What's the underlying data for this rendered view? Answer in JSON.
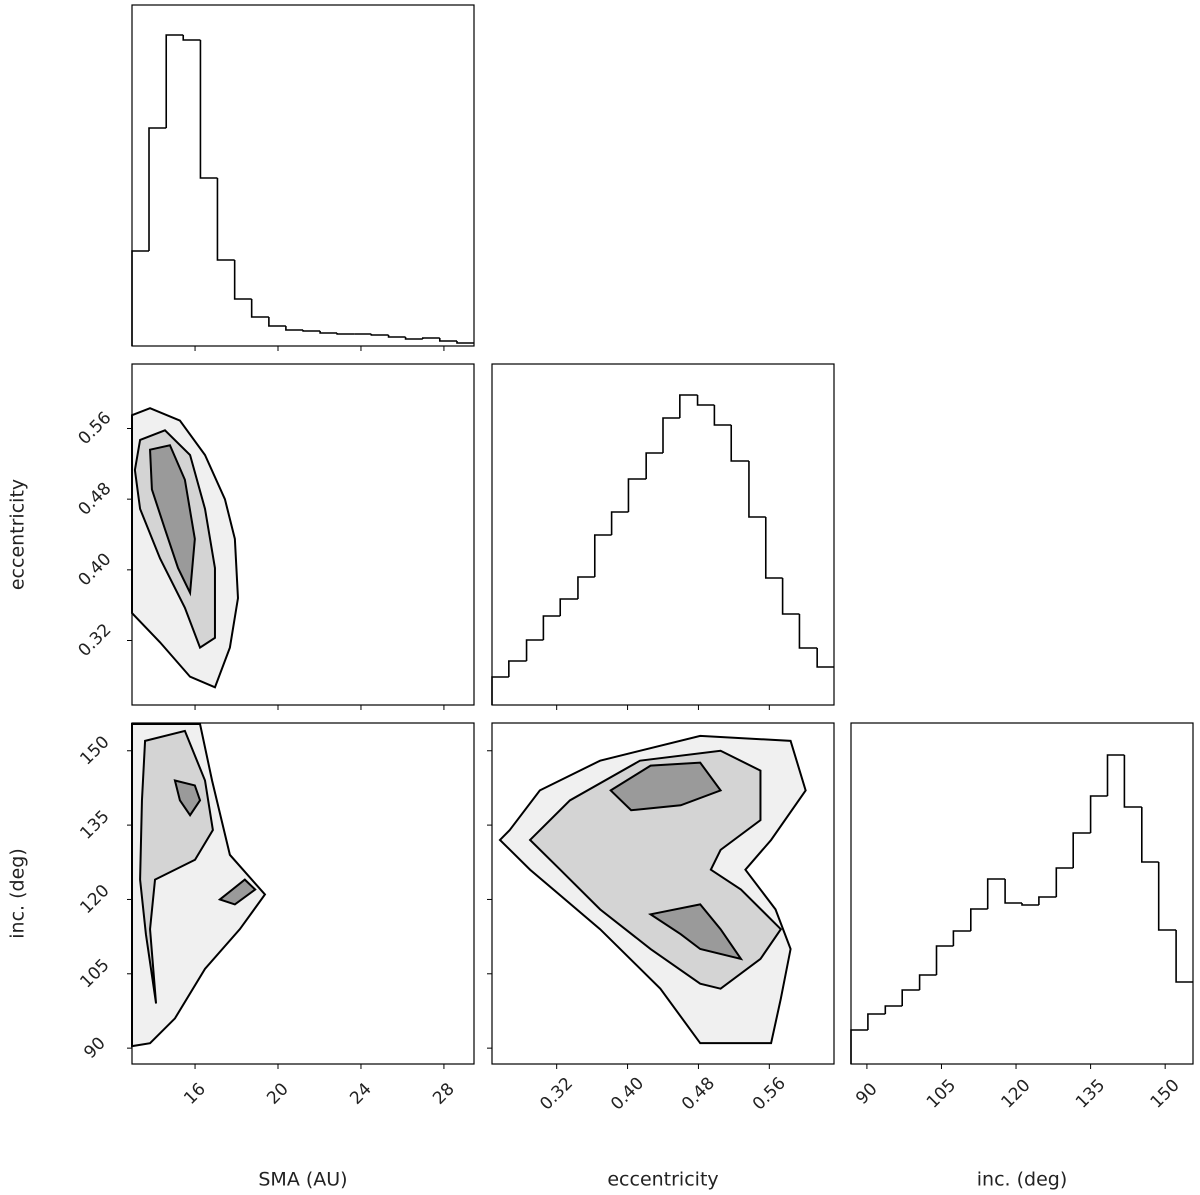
{
  "chart_data": {
    "type": "corner",
    "hist_ylim": [
      0,
      341
    ],
    "params": [
      {
        "label": "SMA (AU)",
        "lim": [
          12.96,
          29.45
        ],
        "ticks": [
          16,
          20,
          24,
          28
        ],
        "bins": [
          12.96,
          13.78,
          14.61,
          15.43,
          16.26,
          17.08,
          17.91,
          18.73,
          19.56,
          20.38,
          21.21,
          22.03,
          22.85,
          23.68,
          24.5,
          25.33,
          26.15,
          26.98,
          27.8,
          28.63,
          29.45
        ],
        "counts": [
          95,
          218,
          311,
          306,
          168,
          86,
          47,
          29,
          20,
          16,
          15,
          13,
          12,
          12,
          11,
          9,
          7,
          8,
          5,
          3
        ]
      },
      {
        "label": "eccentricity",
        "lim": [
          0.247,
          0.633
        ],
        "ticks": [
          0.32,
          {
            "value": 0.4,
            "label": "0.40"
          },
          0.48,
          0.56
        ],
        "bins": [
          0.247,
          0.266,
          0.286,
          0.305,
          0.324,
          0.344,
          0.363,
          0.382,
          0.401,
          0.421,
          0.44,
          0.459,
          0.479,
          0.498,
          0.517,
          0.537,
          0.556,
          0.575,
          0.594,
          0.614,
          0.633
        ],
        "counts": [
          28,
          44,
          65,
          89,
          106,
          128,
          170,
          193,
          226,
          252,
          287,
          310,
          300,
          280,
          244,
          188,
          127,
          91,
          57,
          38
        ]
      },
      {
        "label": "inc. (deg)",
        "lim": [
          86.8,
          155.6
        ],
        "ticks": [
          90,
          105,
          120,
          135,
          150
        ],
        "bins": [
          86.8,
          90.2,
          93.7,
          97.1,
          100.6,
          104.0,
          107.4,
          110.9,
          114.3,
          117.8,
          121.2,
          124.6,
          128.1,
          131.5,
          135.0,
          138.4,
          141.8,
          145.3,
          148.7,
          152.2,
          155.6
        ],
        "counts": [
          34,
          50,
          58,
          74,
          89,
          118,
          133,
          155,
          185,
          161,
          159,
          167,
          196,
          231,
          268,
          309,
          257,
          202,
          134,
          82
        ]
      }
    ],
    "panels": [
      [
        {
          "x": [
            12.96,
            13.83,
            15.27,
            16.48,
            17.44,
            17.92,
            18.07,
            17.68,
            16.96,
            15.76,
            14.31,
            12.96
          ],
          "y": [
            0.575,
            0.583,
            0.569,
            0.53,
            0.48,
            0.435,
            0.368,
            0.312,
            0.267,
            0.279,
            0.318,
            0.351
          ]
        },
        {
          "x": [
            13.35,
            14.55,
            15.76,
            16.48,
            16.96,
            16.96,
            16.24,
            15.51,
            14.31,
            13.35,
            13.1
          ],
          "y": [
            0.547,
            0.558,
            0.53,
            0.469,
            0.402,
            0.323,
            0.312,
            0.357,
            0.413,
            0.469,
            0.513
          ]
        },
        {
          "x": [
            13.83,
            14.79,
            15.51,
            15.99,
            15.76,
            15.18,
            14.55,
            13.92
          ],
          "y": [
            0.536,
            0.541,
            0.502,
            0.435,
            0.374,
            0.402,
            0.446,
            0.491
          ]
        }
      ],
      [
        {
          "x": [
            12.96,
            16.24,
            16.82,
            17.68,
            19.37,
            18.16,
            16.48,
            15.03,
            13.83,
            12.96
          ],
          "y": [
            155.4,
            155.4,
            144.0,
            129.0,
            121.0,
            114.0,
            106.0,
            96.0,
            91.0,
            90.4
          ]
        },
        {
          "x": [
            13.59,
            15.51,
            16.48,
            16.86,
            16.0,
            14.07,
            13.83,
            14.12,
            13.63,
            13.35,
            13.44
          ],
          "y": [
            152.0,
            154.0,
            144.0,
            134.0,
            128.0,
            124.0,
            114.0,
            99.0,
            113.0,
            124.0,
            140.0
          ]
        },
        {
          "x": [
            15.03,
            15.99,
            16.24,
            15.76,
            15.27
          ],
          "y": [
            144.0,
            143.0,
            140.0,
            137.0,
            140.0
          ]
        },
        {
          "x": [
            17.2,
            18.4,
            18.9,
            17.92
          ],
          "y": [
            120.0,
            124.0,
            122.0,
            119.0
          ]
        }
      ],
      [
        {
          "x": [
            0.267,
            0.301,
            0.369,
            0.482,
            0.584,
            0.601,
            0.562,
            0.533,
            0.567,
            0.584,
            0.573,
            0.562,
            0.482,
            0.437,
            0.369,
            0.29,
            0.256
          ],
          "y": [
            134,
            142,
            148,
            153,
            152,
            142,
            132,
            126,
            118,
            110,
            100,
            91,
            91,
            102,
            114,
            126,
            132
          ]
        },
        {
          "x": [
            0.29,
            0.335,
            0.414,
            0.505,
            0.55,
            0.55,
            0.505,
            0.494,
            0.528,
            0.573,
            0.55,
            0.505,
            0.482,
            0.426,
            0.369,
            0.324
          ],
          "y": [
            132,
            140,
            148,
            150,
            146,
            136,
            130,
            126,
            122,
            114,
            108,
            102,
            103,
            110,
            118,
            126
          ]
        },
        {
          "x": [
            0.381,
            0.426,
            0.482,
            0.505,
            0.46,
            0.404
          ],
          "y": [
            142,
            147,
            147.6,
            142,
            139,
            138
          ]
        },
        {
          "x": [
            0.426,
            0.482,
            0.505,
            0.528,
            0.482,
            0.46
          ],
          "y": [
            117,
            119,
            114,
            108,
            110,
            113
          ]
        }
      ]
    ]
  }
}
